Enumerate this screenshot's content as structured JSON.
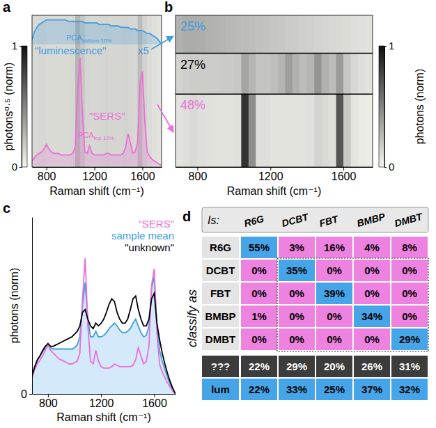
{
  "chart_data": [
    {
      "type": "heatmap",
      "panel": "a",
      "xlabel": "Raman shift (cm⁻¹)",
      "xlim": [
        680,
        1760
      ],
      "xticks": [
        800,
        1200,
        1600
      ],
      "tick_labels": "x",
      "x": [
        700,
        740,
        780,
        820,
        860,
        900,
        940,
        980,
        1020,
        1060,
        1100,
        1140,
        1180,
        1220,
        1260,
        1300,
        1340,
        1380,
        1420,
        1460,
        1500,
        1540,
        1580,
        1620,
        1660,
        1700,
        1740
      ],
      "cells": [
        [
          0.12,
          0.13,
          0.13,
          0.12,
          0.12,
          0.12,
          0.12,
          0.12,
          0.13,
          0.28,
          0.2,
          0.14,
          0.13,
          0.13,
          0.14,
          0.15,
          0.14,
          0.14,
          0.14,
          0.15,
          0.14,
          0.13,
          0.25,
          0.15,
          0.11,
          0.09,
          0.08
        ]
      ],
      "colorbar": {
        "label": "photons⁰·⁵ (norm)",
        "range": [
          0,
          1
        ],
        "ticks": [
          0,
          1
        ]
      },
      "overlay": {
        "type": "area",
        "ylim": [
          0,
          1
        ],
        "x": [
          680,
          700,
          720,
          740,
          760,
          780,
          800,
          820,
          840,
          860,
          880,
          900,
          920,
          940,
          960,
          980,
          1000,
          1020,
          1040,
          1060,
          1080,
          1100,
          1120,
          1140,
          1160,
          1180,
          1200,
          1220,
          1240,
          1260,
          1280,
          1300,
          1320,
          1340,
          1360,
          1380,
          1400,
          1420,
          1440,
          1460,
          1480,
          1500,
          1520,
          1540,
          1560,
          1580,
          1600,
          1620,
          1640,
          1660,
          1680,
          1700,
          1720,
          1740,
          1760
        ],
        "series": [
          {
            "name": "\"luminescence\"",
            "color": "#3d9de3",
            "label": {
              "text": "PCA",
              "sub": "bottom 10%"
            },
            "scale_label": "x5",
            "values": [
              0.84,
              0.89,
              0.92,
              0.94,
              0.95,
              0.96,
              0.97,
              0.97,
              0.97,
              0.97,
              0.97,
              0.97,
              0.97,
              0.97,
              0.97,
              0.96,
              0.96,
              0.96,
              0.96,
              0.96,
              0.96,
              0.96,
              0.95,
              0.95,
              0.95,
              0.95,
              0.95,
              0.95,
              0.94,
              0.94,
              0.94,
              0.94,
              0.94,
              0.93,
              0.93,
              0.93,
              0.93,
              0.92,
              0.92,
              0.92,
              0.92,
              0.91,
              0.91,
              0.91,
              0.9,
              0.9,
              0.9,
              0.89,
              0.88,
              0.88,
              0.87,
              0.86,
              0.85,
              0.83,
              0.81
            ]
          },
          {
            "name": "\"SERS\"",
            "color": "#ec6fd9",
            "label": {
              "text": "PCA",
              "sub": "top 10%"
            },
            "values": [
              0.04,
              0.06,
              0.08,
              0.09,
              0.1,
              0.12,
              0.15,
              0.12,
              0.1,
              0.09,
              0.09,
              0.09,
              0.08,
              0.08,
              0.08,
              0.08,
              0.08,
              0.09,
              0.13,
              0.5,
              0.72,
              0.35,
              0.1,
              0.09,
              0.14,
              0.09,
              0.08,
              0.08,
              0.08,
              0.08,
              0.08,
              0.09,
              0.09,
              0.08,
              0.08,
              0.08,
              0.08,
              0.08,
              0.09,
              0.13,
              0.22,
              0.16,
              0.09,
              0.1,
              0.16,
              0.55,
              0.63,
              0.3,
              0.1,
              0.07,
              0.05,
              0.04,
              0.03,
              0.02,
              0.01
            ]
          }
        ]
      }
    },
    {
      "type": "heatmap",
      "panel": "b",
      "xlabel": "Raman shift (cm⁻¹)",
      "xlim": [
        680,
        1760
      ],
      "xticks": [
        800,
        1200,
        1600
      ],
      "tick_labels": "x",
      "x": [
        700,
        740,
        780,
        820,
        860,
        900,
        940,
        980,
        1020,
        1060,
        1100,
        1140,
        1180,
        1220,
        1260,
        1300,
        1340,
        1380,
        1420,
        1460,
        1500,
        1540,
        1580,
        1620,
        1660,
        1700,
        1740
      ],
      "groups": [
        {
          "label": "25%",
          "share": 25,
          "color": "#3d9de3",
          "cells": [
            0.3,
            0.32,
            0.32,
            0.31,
            0.3,
            0.29,
            0.28,
            0.27,
            0.26,
            0.25,
            0.24,
            0.23,
            0.22,
            0.21,
            0.2,
            0.19,
            0.18,
            0.17,
            0.16,
            0.15,
            0.14,
            0.13,
            0.12,
            0.11,
            0.1,
            0.09,
            0.08
          ]
        },
        {
          "label": "27%",
          "share": 27,
          "color": "#000000",
          "cells": [
            0.15,
            0.17,
            0.18,
            0.18,
            0.18,
            0.18,
            0.19,
            0.19,
            0.2,
            0.35,
            0.28,
            0.22,
            0.22,
            0.24,
            0.28,
            0.38,
            0.3,
            0.25,
            0.28,
            0.42,
            0.3,
            0.25,
            0.4,
            0.2,
            0.13,
            0.1,
            0.08
          ]
        },
        {
          "label": "48%",
          "share": 48,
          "color": "#ec6fd9",
          "cells": [
            0.08,
            0.1,
            0.12,
            0.1,
            0.09,
            0.08,
            0.08,
            0.08,
            0.09,
            0.85,
            0.45,
            0.1,
            0.1,
            0.08,
            0.08,
            0.08,
            0.08,
            0.08,
            0.09,
            0.15,
            0.12,
            0.1,
            0.7,
            0.2,
            0.07,
            0.05,
            0.04
          ]
        }
      ],
      "colorbar": {
        "label": "photons (norm)",
        "range": [
          0,
          1
        ],
        "ticks": [
          0,
          1
        ]
      }
    },
    {
      "type": "line",
      "panel": "c",
      "xlabel": "Raman shift (cm⁻¹)",
      "ylabel": "photons (norm)",
      "xlim": [
        680,
        1760
      ],
      "xticks": [
        800,
        1200,
        1600
      ],
      "ylim": [
        0,
        1.3
      ],
      "yticks": [
        0
      ],
      "legend": "top-right",
      "x": [
        680,
        700,
        720,
        740,
        760,
        780,
        800,
        820,
        840,
        860,
        880,
        900,
        920,
        940,
        960,
        980,
        1000,
        1020,
        1040,
        1060,
        1080,
        1100,
        1120,
        1140,
        1160,
        1180,
        1200,
        1220,
        1240,
        1260,
        1280,
        1300,
        1320,
        1340,
        1360,
        1380,
        1400,
        1420,
        1440,
        1460,
        1480,
        1500,
        1520,
        1540,
        1560,
        1580,
        1600,
        1620,
        1640,
        1660,
        1680,
        1700,
        1720,
        1740,
        1760
      ],
      "series": [
        {
          "name": "\"SERS\"",
          "color": "#ec6fd9",
          "values": [
            0.12,
            0.18,
            0.22,
            0.25,
            0.28,
            0.32,
            0.36,
            0.32,
            0.3,
            0.28,
            0.26,
            0.25,
            0.24,
            0.23,
            0.22,
            0.22,
            0.23,
            0.24,
            0.3,
            0.7,
            1.0,
            0.5,
            0.24,
            0.22,
            0.32,
            0.24,
            0.2,
            0.19,
            0.19,
            0.19,
            0.2,
            0.22,
            0.21,
            0.2,
            0.2,
            0.2,
            0.2,
            0.2,
            0.21,
            0.25,
            0.34,
            0.28,
            0.22,
            0.24,
            0.35,
            0.8,
            0.92,
            0.45,
            0.22,
            0.16,
            0.12,
            0.08,
            0.05,
            0.02,
            0.0
          ]
        },
        {
          "name": "sample mean",
          "color": "#3d9de3",
          "type": "area",
          "values": [
            0.14,
            0.2,
            0.25,
            0.28,
            0.31,
            0.34,
            0.37,
            0.34,
            0.33,
            0.33,
            0.33,
            0.33,
            0.33,
            0.33,
            0.33,
            0.33,
            0.34,
            0.36,
            0.42,
            0.65,
            0.82,
            0.55,
            0.42,
            0.42,
            0.46,
            0.42,
            0.42,
            0.43,
            0.45,
            0.48,
            0.5,
            0.52,
            0.5,
            0.47,
            0.45,
            0.45,
            0.46,
            0.48,
            0.52,
            0.55,
            0.5,
            0.45,
            0.42,
            0.43,
            0.5,
            0.78,
            0.86,
            0.5,
            0.32,
            0.24,
            0.18,
            0.12,
            0.07,
            0.03,
            0.0
          ]
        },
        {
          "name": "\"unknown\"",
          "color": "#000000",
          "values": [
            0.13,
            0.2,
            0.25,
            0.28,
            0.32,
            0.35,
            0.37,
            0.35,
            0.35,
            0.36,
            0.37,
            0.38,
            0.39,
            0.4,
            0.41,
            0.42,
            0.44,
            0.46,
            0.5,
            0.6,
            0.62,
            0.55,
            0.5,
            0.48,
            0.52,
            0.5,
            0.52,
            0.55,
            0.6,
            0.66,
            0.7,
            0.68,
            0.6,
            0.55,
            0.52,
            0.52,
            0.55,
            0.62,
            0.7,
            0.72,
            0.62,
            0.55,
            0.5,
            0.5,
            0.55,
            0.7,
            0.74,
            0.52,
            0.4,
            0.3,
            0.22,
            0.15,
            0.09,
            0.04,
            0.0
          ]
        }
      ]
    },
    {
      "type": "table",
      "panel": "d",
      "columns_title": "Is:",
      "rows_title": "classify as",
      "columns": [
        "R6G",
        "DCBT",
        "FBT",
        "BMBP",
        "DMBT"
      ],
      "rows": [
        {
          "label": "R6G",
          "cells": [
            "55%",
            "3%",
            "16%",
            "4%",
            "8%"
          ],
          "colors": [
            "#45a5e8",
            "#ee82e0",
            "#ee82e0",
            "#ee82e0",
            "#ee82e0"
          ]
        },
        {
          "label": "DCBT",
          "cells": [
            "0%",
            "35%",
            "0%",
            "0%",
            "0%"
          ],
          "colors": [
            "#ee82e0",
            "#45a5e8",
            "#ee82e0",
            "#ee82e0",
            "#ee82e0"
          ]
        },
        {
          "label": "FBT",
          "cells": [
            "0%",
            "0%",
            "39%",
            "0%",
            "0%"
          ],
          "colors": [
            "#ee82e0",
            "#ee82e0",
            "#45a5e8",
            "#ee82e0",
            "#ee82e0"
          ]
        },
        {
          "label": "BMBP",
          "cells": [
            "1%",
            "0%",
            "0%",
            "34%",
            "0%"
          ],
          "colors": [
            "#ee82e0",
            "#ee82e0",
            "#ee82e0",
            "#45a5e8",
            "#ee82e0"
          ]
        },
        {
          "label": "DMBT",
          "cells": [
            "0%",
            "0%",
            "0%",
            "0%",
            "29%"
          ],
          "colors": [
            "#ee82e0",
            "#ee82e0",
            "#ee82e0",
            "#ee82e0",
            "#45a5e8"
          ]
        },
        {
          "label": "???",
          "color": "#3c3c3c",
          "cells": [
            "22%",
            "29%",
            "20%",
            "26%",
            "31%"
          ],
          "colors": [
            "#3c3c3c",
            "#3c3c3c",
            "#3c3c3c",
            "#3c3c3c",
            "#3c3c3c"
          ]
        },
        {
          "label": "lum",
          "color": "#45a5e8",
          "cells": [
            "22%",
            "33%",
            "25%",
            "37%",
            "32%"
          ],
          "colors": [
            "#45a5e8",
            "#45a5e8",
            "#45a5e8",
            "#45a5e8",
            "#45a5e8"
          ]
        }
      ]
    }
  ]
}
